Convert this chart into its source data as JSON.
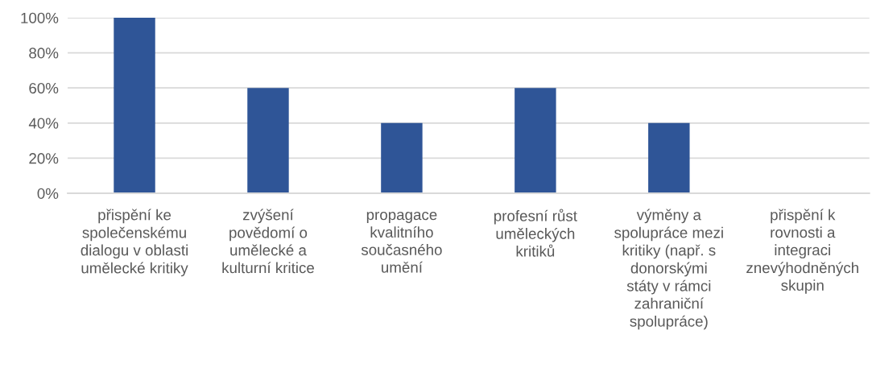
{
  "chart_data": {
    "type": "bar",
    "categories": [
      "přispění ke\nspolečenskému\ndialogu v oblasti\numělecké kritiky",
      "zvýšení\npovědomí o\numělecké a\nkulturní kritice",
      "propagace\nkvalitního\nsoučasného\numění",
      "profesní růst\numěleckých\nkritiků",
      "výměny a\nspolupráce mezi\nkritiky (např. s\ndonorskými\nstáty v rámci\nzahraniční\nspolupráce)",
      "přispění k\nrovnosti a\nintegraci\nznevýhodněných\nskupin"
    ],
    "values": [
      100,
      60,
      40,
      60,
      40,
      0
    ],
    "color": "#2f5597",
    "ylim": [
      0,
      100
    ],
    "yticks": [
      {
        "value": 0,
        "label": "0%"
      },
      {
        "value": 20,
        "label": "20%"
      },
      {
        "value": 40,
        "label": "40%"
      },
      {
        "value": 60,
        "label": "60%"
      },
      {
        "value": 80,
        "label": "80%"
      },
      {
        "value": 100,
        "label": "100%"
      }
    ],
    "grid": "y"
  }
}
